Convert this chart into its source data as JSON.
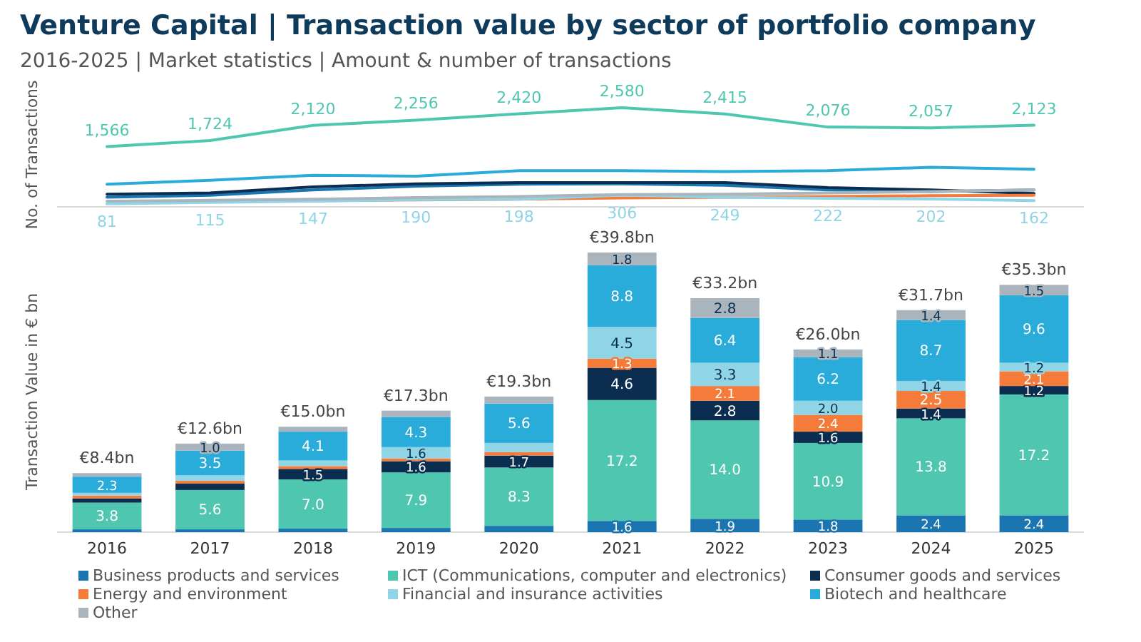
{
  "chart_data": [
    {
      "type": "line",
      "title": "Venture Capital | Transaction value by sector of portfolio company",
      "subtitle": "2016-2025 | Market statistics | Amount & number of transactions",
      "ylabel": "No. of Transactions",
      "categories": [
        null,
        null,
        null,
        null,
        null,
        null,
        null,
        null,
        null,
        null
      ],
      "tick_labels": false,
      "legend": false,
      "marker": "none",
      "line_style": "solid",
      "series": [
        {
          "color": "#1b75b0",
          "values": [
            250,
            300,
            440,
            540,
            590,
            600,
            560,
            440,
            400,
            440
          ]
        },
        {
          "color": "#4fc7b0",
          "values": [
            1566,
            1724,
            2120,
            2256,
            2420,
            2580,
            2415,
            2076,
            2057,
            2123
          ],
          "value_labels": [
            "1,566",
            "1,724",
            "2,120",
            "2,256",
            "2,420",
            "2,580",
            "2,415",
            "2,076",
            "2,057",
            "2,123"
          ]
        },
        {
          "color": "#0a2d50",
          "values": [
            330,
            360,
            520,
            600,
            630,
            630,
            630,
            500,
            440,
            350
          ]
        },
        {
          "color": "#f47b3a",
          "values": [
            null,
            null,
            160,
            180,
            200,
            230,
            250,
            270,
            290,
            300
          ]
        },
        {
          "color": "#8fd5e6",
          "values": [
            81,
            115,
            147,
            190,
            198,
            306,
            249,
            222,
            202,
            162
          ],
          "value_labels": [
            "81",
            "115",
            "147",
            "190",
            "198",
            "306",
            "249",
            "222",
            "202",
            "162"
          ]
        },
        {
          "color": "#29acd9",
          "values": [
            590,
            690,
            820,
            800,
            940,
            940,
            920,
            940,
            1030,
            980
          ]
        },
        {
          "color": "#aab4bd",
          "values": [
            150,
            170,
            200,
            240,
            270,
            320,
            330,
            360,
            400,
            440
          ]
        }
      ]
    },
    {
      "type": "bar",
      "stacked": true,
      "ylabel": "Transaction Value in € bn",
      "categories": [
        "2016",
        "2017",
        "2018",
        "2019",
        "2020",
        "2021",
        "2022",
        "2023",
        "2024",
        "2025"
      ],
      "ylim": [
        0,
        40
      ],
      "tick_labels": "x",
      "legend": "bottom",
      "totals": [
        "€8.4bn",
        "€12.6bn",
        "€15.0bn",
        "€17.3bn",
        "€19.3bn",
        "€39.8bn",
        "€33.2bn",
        "€26.0bn",
        "€31.7bn",
        "€35.3bn"
      ],
      "series": [
        {
          "name": "Business products and services",
          "color": "#1b75b0",
          "values": [
            0.4,
            0.4,
            0.5,
            0.6,
            0.9,
            1.6,
            1.9,
            1.8,
            2.4,
            2.4
          ],
          "value_labels": [
            null,
            null,
            null,
            null,
            null,
            "1.6",
            "1.9",
            "1.8",
            "2.4",
            "2.4"
          ]
        },
        {
          "name": "ICT (Communications, computer and electronics)",
          "color": "#4fc7b0",
          "values": [
            3.8,
            5.6,
            7.0,
            7.9,
            8.3,
            17.2,
            14.0,
            10.9,
            13.8,
            17.2
          ],
          "value_labels": [
            "3.8",
            "5.6",
            "7.0",
            "7.9",
            "8.3",
            "17.2",
            "14.0",
            "10.9",
            "13.8",
            "17.2"
          ]
        },
        {
          "name": "Consumer goods and services",
          "color": "#0a2d50",
          "values": [
            0.6,
            0.9,
            1.5,
            1.6,
            1.7,
            4.6,
            2.8,
            1.6,
            1.4,
            1.2
          ],
          "value_labels": [
            null,
            null,
            "1.5",
            "1.6",
            "1.7",
            "4.6",
            "2.8",
            "1.6",
            "1.4",
            "1.2"
          ]
        },
        {
          "name": "Energy and environment",
          "color": "#f47b3a",
          "values": [
            0.4,
            0.4,
            0.4,
            0.4,
            0.5,
            1.3,
            2.1,
            2.4,
            2.5,
            2.1
          ],
          "value_labels": [
            null,
            null,
            null,
            null,
            null,
            "1.3",
            "2.1",
            "2.4",
            "2.5",
            "2.1"
          ]
        },
        {
          "name": "Financial and insurance activities",
          "color": "#8fd5e6",
          "values": [
            0.4,
            0.8,
            0.8,
            1.6,
            1.3,
            4.5,
            3.3,
            2.0,
            1.4,
            1.2
          ],
          "value_labels": [
            null,
            null,
            null,
            "1.6",
            null,
            "4.5",
            "3.3",
            "2.0",
            "1.4",
            "1.2"
          ]
        },
        {
          "name": "Biotech and healthcare",
          "color": "#29acd9",
          "values": [
            2.3,
            3.5,
            4.1,
            4.3,
            5.6,
            8.8,
            6.4,
            6.2,
            8.7,
            9.6
          ],
          "value_labels": [
            "2.3",
            "3.5",
            "4.1",
            "4.3",
            "5.6",
            "8.8",
            "6.4",
            "6.2",
            "8.7",
            "9.6"
          ]
        },
        {
          "name": "Other",
          "color": "#aab4bd",
          "values": [
            0.5,
            1.0,
            0.7,
            0.9,
            1.0,
            1.8,
            2.8,
            1.1,
            1.4,
            1.5
          ],
          "value_labels": [
            null,
            "1.0",
            null,
            null,
            null,
            "1.8",
            "2.8",
            "1.1",
            "1.4",
            "1.5"
          ]
        }
      ]
    }
  ]
}
